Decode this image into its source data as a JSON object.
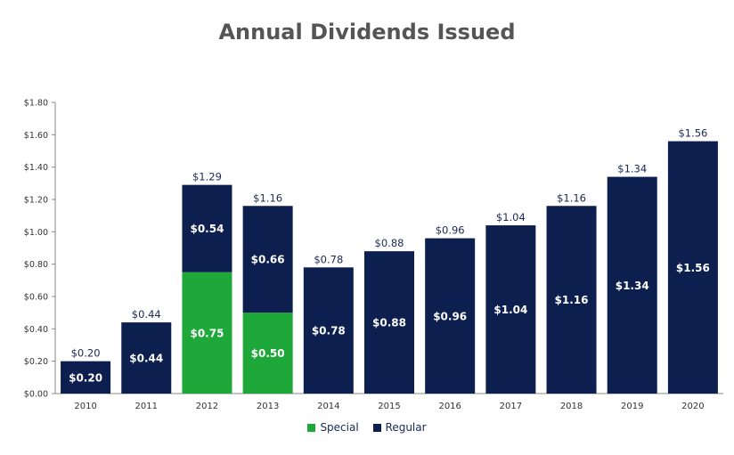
{
  "chart_data": {
    "type": "bar",
    "stacked": true,
    "title": "Annual Dividends Issued",
    "xlabel": "",
    "ylabel": "",
    "categories": [
      "2010",
      "2011",
      "2012",
      "2013",
      "2014",
      "2015",
      "2016",
      "2017",
      "2018",
      "2019",
      "2020"
    ],
    "series": [
      {
        "name": "Special",
        "color": "#1fa83a",
        "values": [
          0,
          0,
          0.75,
          0.5,
          0,
          0,
          0,
          0,
          0,
          0,
          0
        ]
      },
      {
        "name": "Regular",
        "color": "#0d1f4f",
        "values": [
          0.2,
          0.44,
          0.54,
          0.66,
          0.78,
          0.88,
          0.96,
          1.04,
          1.16,
          1.34,
          1.56
        ]
      }
    ],
    "ylim": [
      0,
      1.8
    ],
    "yticks": [
      0,
      0.2,
      0.4,
      0.6,
      0.8,
      1.0,
      1.2,
      1.4,
      1.6,
      1.8
    ],
    "ytick_labels": [
      "$0.00",
      "$0.20",
      "$0.40",
      "$0.60",
      "$0.80",
      "$1.00",
      "$1.20",
      "$1.40",
      "$1.60",
      "$1.80"
    ],
    "segment_labels": {
      "Special": [
        "",
        "",
        "$0.75",
        "$0.50",
        "",
        "",
        "",
        "",
        "",
        "",
        ""
      ],
      "Regular": [
        "$0.20",
        "$0.44",
        "$0.54",
        "$0.66",
        "$0.78",
        "$0.88",
        "$0.96",
        "$1.04",
        "$1.16",
        "$1.34",
        "$1.56"
      ]
    },
    "total_labels": [
      "$0.20",
      "$0.44",
      "$1.29",
      "$1.16",
      "$0.78",
      "$0.88",
      "$0.96",
      "$1.04",
      "$1.16",
      "$1.34",
      "$1.56"
    ],
    "legend_position": "bottom",
    "grid": false
  }
}
